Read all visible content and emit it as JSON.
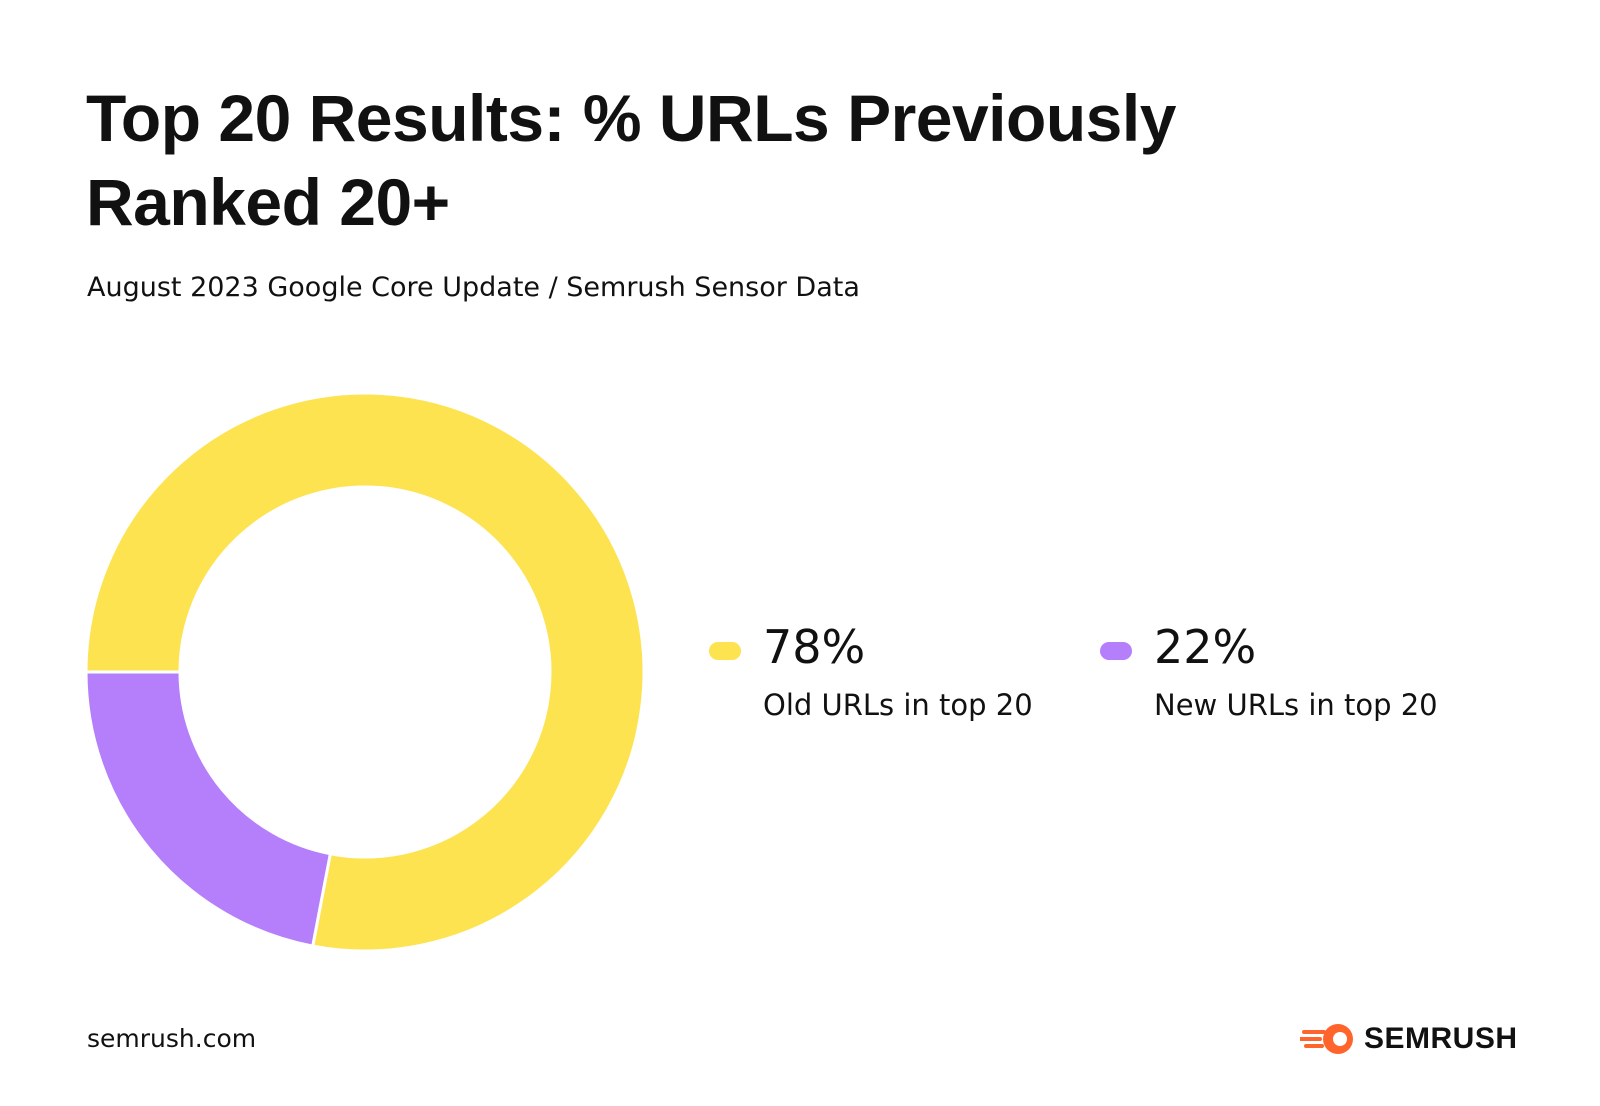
{
  "chart_data": {
    "type": "donut",
    "title": "Top 20 Results: % URLs Previously Ranked 20+",
    "subtitle": "August 2023 Google Core Update / Semrush Sensor Data",
    "categories": [
      "Old URLs in top 20",
      "New URLs in top 20"
    ],
    "values": [
      78,
      22
    ],
    "value_labels": [
      "78%",
      "22%"
    ],
    "colors": [
      "#fde350",
      "#b57ffb"
    ]
  },
  "footer": {
    "source": "semrush.com",
    "brand": "SEMRUSH"
  }
}
